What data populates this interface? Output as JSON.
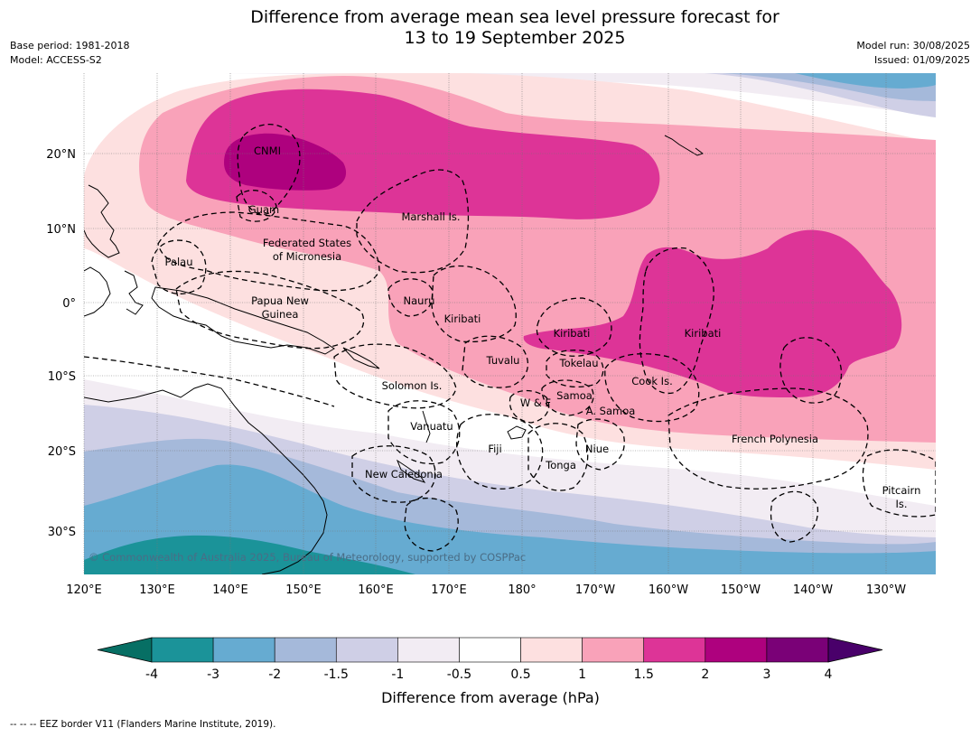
{
  "title": {
    "line1": "Difference from average mean sea level pressure forecast for",
    "line2": "13 to 19 September 2025"
  },
  "meta": {
    "base_period": "Base period: 1981-2018",
    "model": "Model: ACCESS-S2",
    "model_run": "Model run: 30/08/2025",
    "issued": "Issued: 01/09/2025"
  },
  "map": {
    "lon_labels": [
      "120°E",
      "130°E",
      "140°E",
      "150°E",
      "160°E",
      "170°E",
      "180°",
      "170°W",
      "160°W",
      "150°W",
      "140°W",
      "130°W"
    ],
    "lat_labels": [
      "20°N",
      "10°N",
      "0°",
      "10°S",
      "20°S",
      "30°S"
    ],
    "copyright": "© Commonwealth of Australia 2025, Bureau of Meteorology, supported by COSPPac",
    "regions": [
      {
        "name": "CNMI"
      },
      {
        "name": "Guam"
      },
      {
        "name": "Marshall Is."
      },
      {
        "name": "Federated States"
      },
      {
        "name": "of Micronesia"
      },
      {
        "name": "Palau"
      },
      {
        "name": "Papua New"
      },
      {
        "name": "Guinea"
      },
      {
        "name": "Nauru"
      },
      {
        "name": "Kiribati"
      },
      {
        "name": "Kiribati"
      },
      {
        "name": "Kiribati"
      },
      {
        "name": "Tuvalu"
      },
      {
        "name": "Tokelau"
      },
      {
        "name": "Cook Is."
      },
      {
        "name": "Solomon Is."
      },
      {
        "name": "Samoa"
      },
      {
        "name": "W & F"
      },
      {
        "name": "A. Samoa"
      },
      {
        "name": "Vanuatu"
      },
      {
        "name": "Fiji"
      },
      {
        "name": "Niue"
      },
      {
        "name": "Tonga"
      },
      {
        "name": "French Polynesia"
      },
      {
        "name": "New Caledonia"
      },
      {
        "name": "Pitcairn"
      },
      {
        "name": "Is."
      }
    ]
  },
  "colorbar": {
    "ticks": [
      "-4",
      "-3",
      "-2",
      "-1.5",
      "-1",
      "-0.5",
      "0.5",
      "1",
      "1.5",
      "2",
      "3",
      "4"
    ],
    "colors": [
      "#076f64",
      "#1b9399",
      "#66abd1",
      "#a5b9da",
      "#cfcfe6",
      "#f2ecf3",
      "#ffffff",
      "#fde0e0",
      "#f9a2b9",
      "#dd3497",
      "#ae017e",
      "#7a0177",
      "#49006a"
    ],
    "label": "Difference from average (hPa)"
  },
  "footnote": "--  --  -- EEZ border V11 (Flanders Marine Institute, 2019)."
}
